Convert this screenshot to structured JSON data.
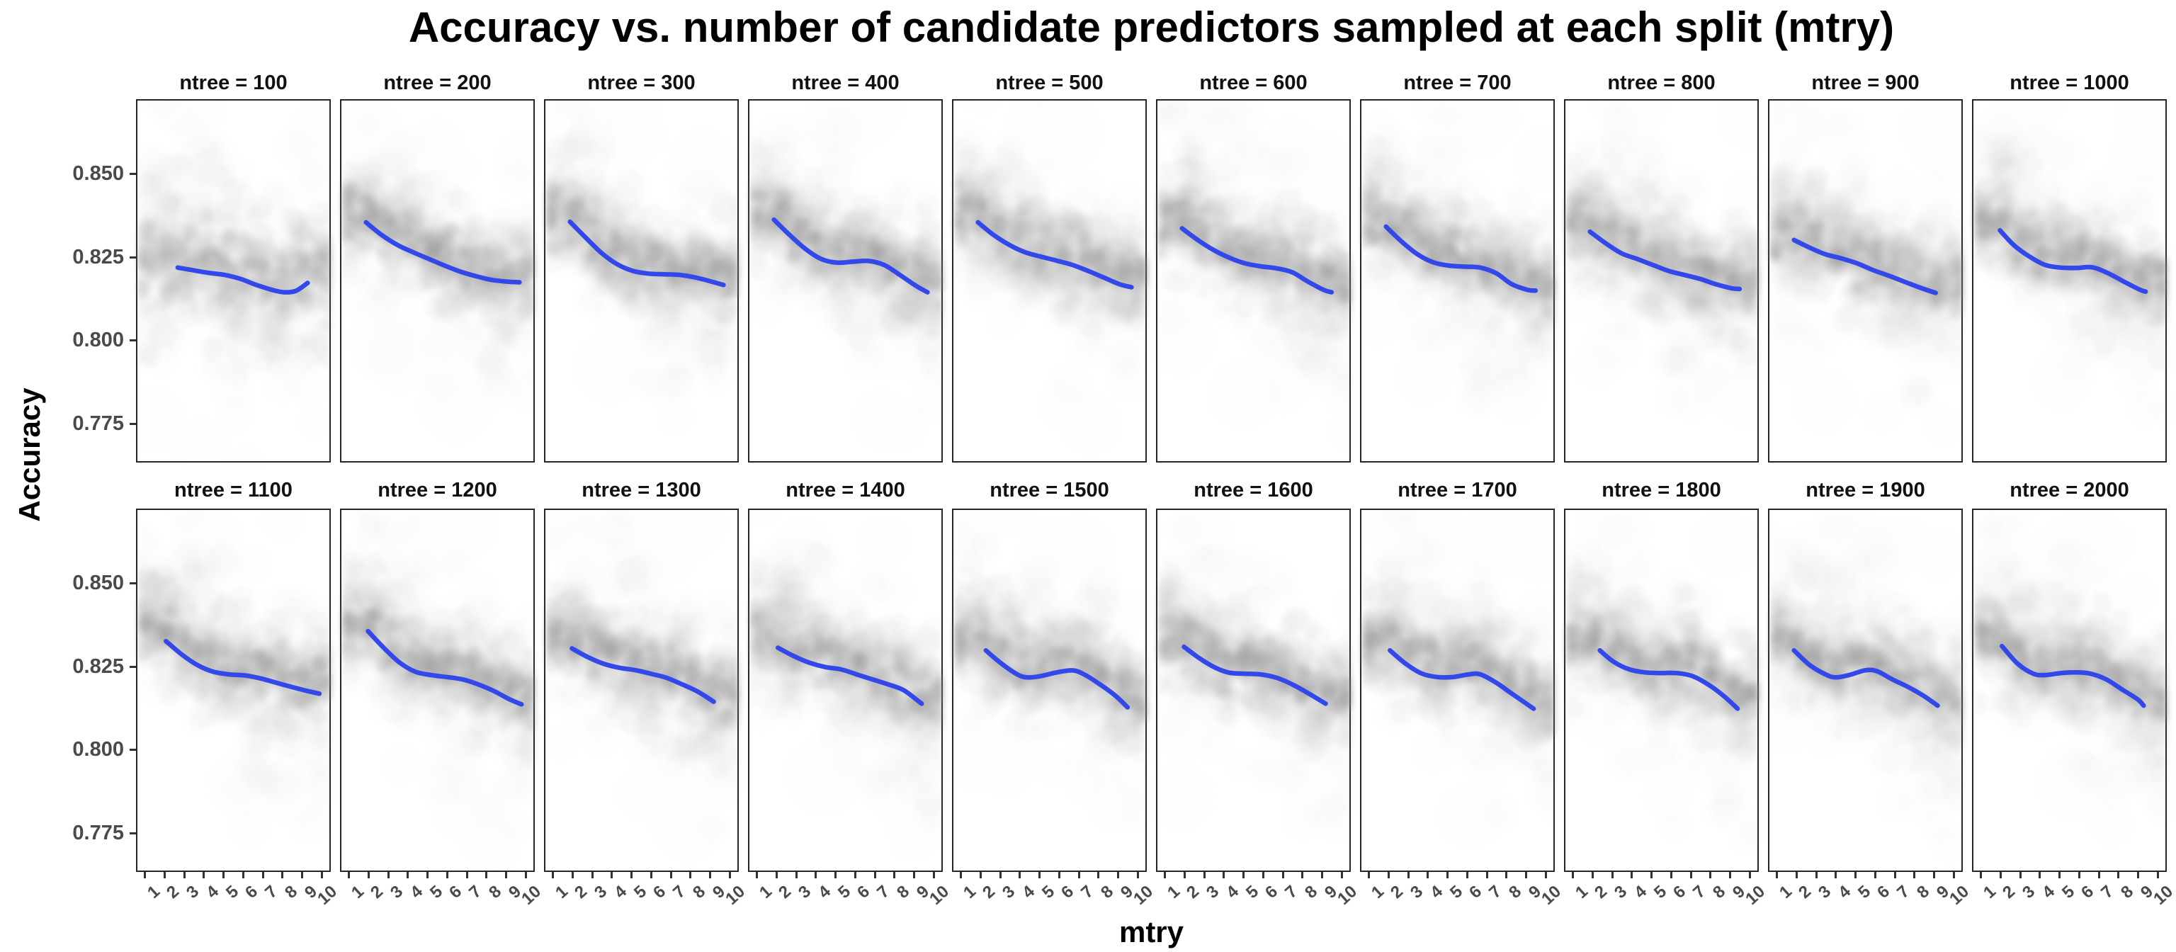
{
  "chart_data": {
    "type": "scatter",
    "title": "Accuracy vs. number of candidate predictors sampled at each split (mtry)",
    "xlabel": "mtry",
    "ylabel": "Accuracy",
    "x_tick_labels": [
      "1",
      "2",
      "3",
      "4",
      "5",
      "6",
      "7",
      "8",
      "9",
      "10"
    ],
    "y_tick_labels": [
      "0.850",
      "0.825",
      "0.800",
      "0.775"
    ],
    "y_tick_values": [
      0.85,
      0.825,
      0.8,
      0.775
    ],
    "xlim": [
      0.55,
      10.45
    ],
    "ylim": [
      0.7632,
      0.8724
    ],
    "grid": "off",
    "legend": "none",
    "layout": {
      "rows": 2,
      "cols": 10
    },
    "point_style": {
      "color": "#8f8f8f",
      "alpha": "low",
      "jittered": true
    },
    "smooth_color": "#3348E8",
    "facets": [
      {
        "label": "ntree = 100",
        "ntree": 100,
        "smooth": [
          [
            2.6,
            0.8222
          ],
          [
            3.3,
            0.8215
          ],
          [
            4.2,
            0.8206
          ],
          [
            5.0,
            0.82
          ],
          [
            5.8,
            0.8188
          ],
          [
            6.6,
            0.817
          ],
          [
            7.4,
            0.8155
          ],
          [
            8.0,
            0.8148
          ],
          [
            8.6,
            0.8152
          ],
          [
            9.2,
            0.8176
          ]
        ]
      },
      {
        "label": "ntree = 200",
        "ntree": 200,
        "smooth": [
          [
            1.8,
            0.8358
          ],
          [
            2.6,
            0.832
          ],
          [
            3.4,
            0.829
          ],
          [
            4.2,
            0.8268
          ],
          [
            5.0,
            0.8248
          ],
          [
            5.8,
            0.8228
          ],
          [
            6.6,
            0.821
          ],
          [
            7.4,
            0.8196
          ],
          [
            8.2,
            0.8185
          ],
          [
            9.0,
            0.818
          ],
          [
            9.6,
            0.8178
          ]
        ]
      },
      {
        "label": "ntree = 300",
        "ntree": 300,
        "smooth": [
          [
            1.8,
            0.836
          ],
          [
            2.6,
            0.8312
          ],
          [
            3.4,
            0.8266
          ],
          [
            4.2,
            0.8232
          ],
          [
            5.0,
            0.8212
          ],
          [
            5.8,
            0.8204
          ],
          [
            6.6,
            0.8202
          ],
          [
            7.4,
            0.82
          ],
          [
            8.2,
            0.8192
          ],
          [
            9.0,
            0.818
          ],
          [
            9.6,
            0.817
          ]
        ]
      },
      {
        "label": "ntree = 400",
        "ntree": 400,
        "smooth": [
          [
            1.8,
            0.8366
          ],
          [
            2.6,
            0.832
          ],
          [
            3.4,
            0.8278
          ],
          [
            4.2,
            0.8248
          ],
          [
            5.0,
            0.8237
          ],
          [
            5.8,
            0.824
          ],
          [
            6.6,
            0.8242
          ],
          [
            7.4,
            0.823
          ],
          [
            8.2,
            0.82
          ],
          [
            9.0,
            0.8168
          ],
          [
            9.6,
            0.8148
          ]
        ]
      },
      {
        "label": "ntree = 500",
        "ntree": 500,
        "smooth": [
          [
            1.8,
            0.8358
          ],
          [
            2.6,
            0.832
          ],
          [
            3.4,
            0.829
          ],
          [
            4.2,
            0.8268
          ],
          [
            5.0,
            0.8255
          ],
          [
            5.8,
            0.8243
          ],
          [
            6.6,
            0.823
          ],
          [
            7.4,
            0.8212
          ],
          [
            8.2,
            0.8192
          ],
          [
            9.0,
            0.8172
          ],
          [
            9.6,
            0.8163
          ]
        ]
      },
      {
        "label": "ntree = 600",
        "ntree": 600,
        "smooth": [
          [
            1.8,
            0.834
          ],
          [
            2.6,
            0.8305
          ],
          [
            3.4,
            0.8275
          ],
          [
            4.2,
            0.8252
          ],
          [
            5.0,
            0.8235
          ],
          [
            5.8,
            0.8226
          ],
          [
            6.6,
            0.822
          ],
          [
            7.4,
            0.8208
          ],
          [
            8.2,
            0.818
          ],
          [
            9.0,
            0.8155
          ],
          [
            9.4,
            0.8148
          ]
        ]
      },
      {
        "label": "ntree = 700",
        "ntree": 700,
        "smooth": [
          [
            1.8,
            0.8345
          ],
          [
            2.6,
            0.83
          ],
          [
            3.4,
            0.8262
          ],
          [
            4.2,
            0.8238
          ],
          [
            5.0,
            0.8228
          ],
          [
            5.8,
            0.8225
          ],
          [
            6.6,
            0.8222
          ],
          [
            7.4,
            0.8205
          ],
          [
            8.2,
            0.8172
          ],
          [
            9.0,
            0.8155
          ],
          [
            9.4,
            0.8153
          ]
        ]
      },
      {
        "label": "ntree = 800",
        "ntree": 800,
        "smooth": [
          [
            1.8,
            0.833
          ],
          [
            2.6,
            0.8295
          ],
          [
            3.4,
            0.8265
          ],
          [
            4.2,
            0.8248
          ],
          [
            5.0,
            0.823
          ],
          [
            5.8,
            0.8212
          ],
          [
            6.6,
            0.82
          ],
          [
            7.4,
            0.8188
          ],
          [
            8.2,
            0.8172
          ],
          [
            9.0,
            0.816
          ],
          [
            9.4,
            0.8158
          ]
        ]
      },
      {
        "label": "ntree = 900",
        "ntree": 900,
        "smooth": [
          [
            1.8,
            0.8305
          ],
          [
            2.6,
            0.8282
          ],
          [
            3.4,
            0.8262
          ],
          [
            4.2,
            0.825
          ],
          [
            5.0,
            0.8235
          ],
          [
            5.8,
            0.8215
          ],
          [
            6.6,
            0.8198
          ],
          [
            7.4,
            0.818
          ],
          [
            8.2,
            0.8162
          ],
          [
            9.0,
            0.8146
          ]
        ]
      },
      {
        "label": "ntree = 1000",
        "ntree": 1000,
        "smooth": [
          [
            1.9,
            0.8334
          ],
          [
            2.6,
            0.829
          ],
          [
            3.4,
            0.8255
          ],
          [
            4.2,
            0.823
          ],
          [
            5.0,
            0.8222
          ],
          [
            5.8,
            0.8221
          ],
          [
            6.6,
            0.8223
          ],
          [
            7.4,
            0.8205
          ],
          [
            8.2,
            0.818
          ],
          [
            9.0,
            0.8156
          ],
          [
            9.3,
            0.815
          ]
        ]
      },
      {
        "label": "ntree = 1100",
        "ntree": 1100,
        "smooth": [
          [
            2.0,
            0.833
          ],
          [
            2.8,
            0.829
          ],
          [
            3.6,
            0.8258
          ],
          [
            4.4,
            0.8238
          ],
          [
            5.2,
            0.823
          ],
          [
            6.0,
            0.8227
          ],
          [
            6.8,
            0.8218
          ],
          [
            7.6,
            0.8205
          ],
          [
            8.4,
            0.8192
          ],
          [
            9.2,
            0.818
          ],
          [
            9.8,
            0.8172
          ]
        ]
      },
      {
        "label": "ntree = 1200",
        "ntree": 1200,
        "smooth": [
          [
            1.9,
            0.836
          ],
          [
            2.7,
            0.831
          ],
          [
            3.5,
            0.8266
          ],
          [
            4.3,
            0.8238
          ],
          [
            5.1,
            0.8228
          ],
          [
            5.9,
            0.8222
          ],
          [
            6.7,
            0.8215
          ],
          [
            7.5,
            0.82
          ],
          [
            8.3,
            0.818
          ],
          [
            9.1,
            0.8155
          ],
          [
            9.7,
            0.814
          ]
        ]
      },
      {
        "label": "ntree = 1300",
        "ntree": 1300,
        "smooth": [
          [
            1.9,
            0.8308
          ],
          [
            2.7,
            0.8282
          ],
          [
            3.5,
            0.8262
          ],
          [
            4.3,
            0.825
          ],
          [
            5.1,
            0.8243
          ],
          [
            5.9,
            0.8232
          ],
          [
            6.7,
            0.822
          ],
          [
            7.5,
            0.82
          ],
          [
            8.3,
            0.8178
          ],
          [
            9.1,
            0.8148
          ]
        ]
      },
      {
        "label": "ntree = 1400",
        "ntree": 1400,
        "smooth": [
          [
            2.0,
            0.831
          ],
          [
            2.8,
            0.8285
          ],
          [
            3.6,
            0.8265
          ],
          [
            4.4,
            0.8252
          ],
          [
            5.2,
            0.8245
          ],
          [
            6.0,
            0.823
          ],
          [
            6.8,
            0.8215
          ],
          [
            7.6,
            0.82
          ],
          [
            8.4,
            0.8182
          ],
          [
            9.3,
            0.8142
          ]
        ]
      },
      {
        "label": "ntree = 1500",
        "ntree": 1500,
        "smooth": [
          [
            2.2,
            0.8302
          ],
          [
            3.0,
            0.8262
          ],
          [
            3.8,
            0.823
          ],
          [
            4.3,
            0.8221
          ],
          [
            5.0,
            0.8225
          ],
          [
            5.8,
            0.8236
          ],
          [
            6.6,
            0.8242
          ],
          [
            7.2,
            0.823
          ],
          [
            8.0,
            0.82
          ],
          [
            8.8,
            0.8165
          ],
          [
            9.4,
            0.8131
          ]
        ]
      },
      {
        "label": "ntree = 1600",
        "ntree": 1600,
        "smooth": [
          [
            1.9,
            0.8313
          ],
          [
            2.7,
            0.8278
          ],
          [
            3.5,
            0.825
          ],
          [
            4.2,
            0.8235
          ],
          [
            5.0,
            0.8232
          ],
          [
            5.8,
            0.823
          ],
          [
            6.6,
            0.822
          ],
          [
            7.4,
            0.82
          ],
          [
            8.2,
            0.8174
          ],
          [
            9.1,
            0.8142
          ]
        ]
      },
      {
        "label": "ntree = 1700",
        "ntree": 1700,
        "smooth": [
          [
            2.0,
            0.8302
          ],
          [
            2.8,
            0.8262
          ],
          [
            3.6,
            0.8233
          ],
          [
            4.4,
            0.8222
          ],
          [
            5.2,
            0.8222
          ],
          [
            6.0,
            0.823
          ],
          [
            6.6,
            0.823
          ],
          [
            7.4,
            0.8205
          ],
          [
            8.2,
            0.8172
          ],
          [
            9.3,
            0.8127
          ]
        ]
      },
      {
        "label": "ntree = 1800",
        "ntree": 1800,
        "smooth": [
          [
            2.3,
            0.8302
          ],
          [
            3.0,
            0.8268
          ],
          [
            3.8,
            0.8245
          ],
          [
            4.6,
            0.8236
          ],
          [
            5.4,
            0.8234
          ],
          [
            6.2,
            0.8234
          ],
          [
            7.0,
            0.8225
          ],
          [
            7.8,
            0.82
          ],
          [
            8.6,
            0.8165
          ],
          [
            9.3,
            0.8127
          ]
        ]
      },
      {
        "label": "ntree = 1900",
        "ntree": 1900,
        "smooth": [
          [
            1.8,
            0.8302
          ],
          [
            2.6,
            0.8258
          ],
          [
            3.4,
            0.823
          ],
          [
            3.9,
            0.8221
          ],
          [
            4.6,
            0.8228
          ],
          [
            5.4,
            0.8242
          ],
          [
            6.0,
            0.824
          ],
          [
            6.8,
            0.8215
          ],
          [
            7.6,
            0.8192
          ],
          [
            8.4,
            0.8165
          ],
          [
            9.1,
            0.8136
          ]
        ]
      },
      {
        "label": "ntree = 2000",
        "ntree": 2000,
        "smooth": [
          [
            2.0,
            0.8315
          ],
          [
            2.8,
            0.8262
          ],
          [
            3.6,
            0.8232
          ],
          [
            4.2,
            0.8228
          ],
          [
            5.0,
            0.8234
          ],
          [
            5.8,
            0.8236
          ],
          [
            6.5,
            0.8232
          ],
          [
            7.3,
            0.8215
          ],
          [
            8.1,
            0.8185
          ],
          [
            8.9,
            0.8155
          ],
          [
            9.2,
            0.8136
          ]
        ]
      }
    ]
  }
}
